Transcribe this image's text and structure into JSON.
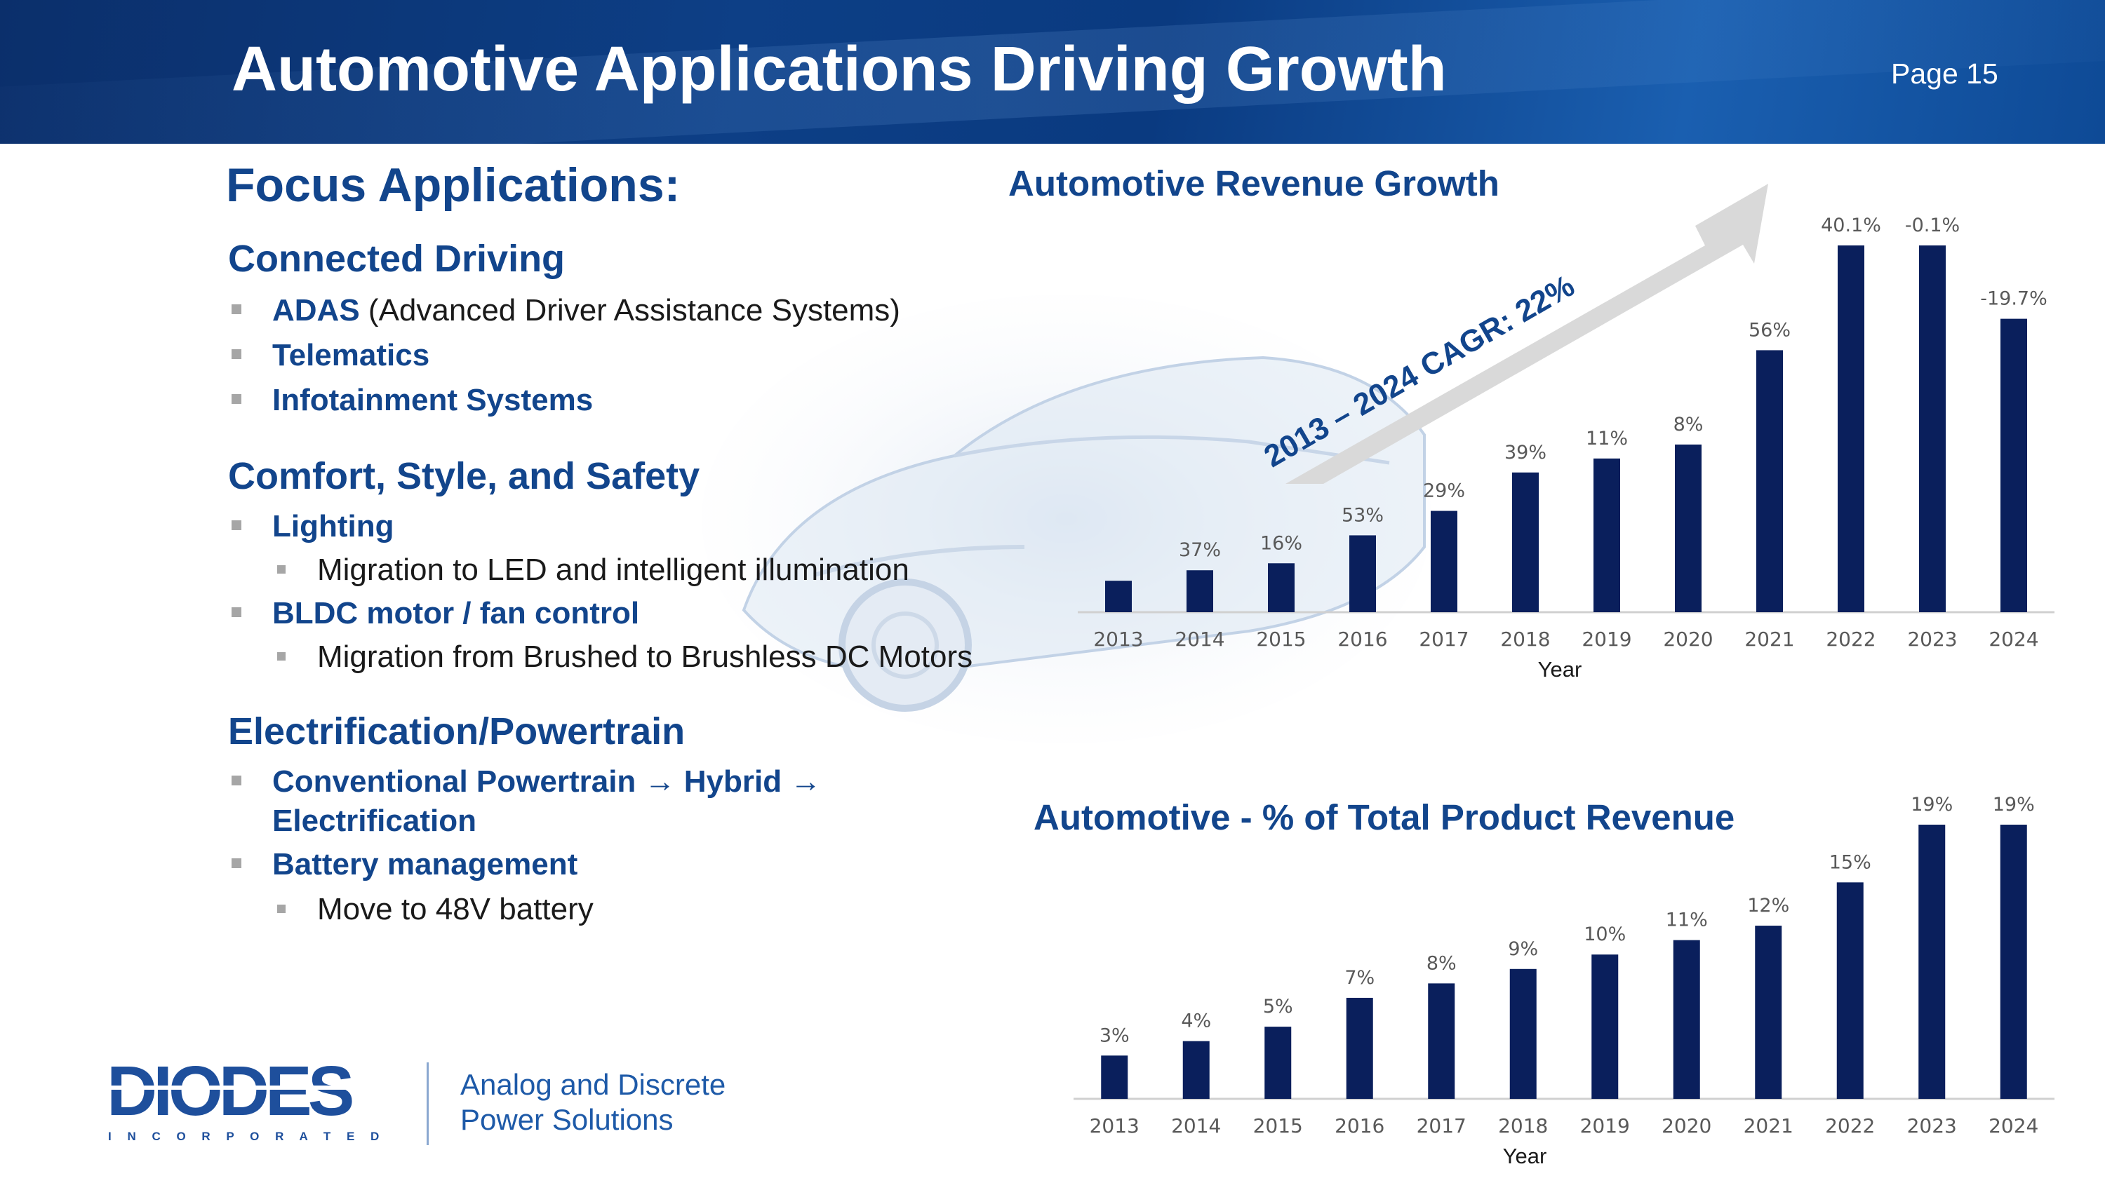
{
  "header": {
    "title": "Automotive Applications Driving Growth",
    "page": "Page 15"
  },
  "left": {
    "focus_title": "Focus Applications:",
    "sections": [
      {
        "heading": "Connected Driving",
        "bullets": [
          {
            "bold": "ADAS",
            "rest": " (Advanced Driver Assistance Systems)"
          },
          {
            "bold": "Telematics",
            "rest": ""
          },
          {
            "bold": "Infotainment Systems",
            "rest": ""
          }
        ]
      },
      {
        "heading": "Comfort, Style, and Safety",
        "bullets": [
          {
            "bold": "Lighting",
            "rest": "",
            "sub": "Migration to LED and intelligent illumination"
          },
          {
            "bold": "BLDC motor / fan control",
            "rest": "",
            "sub": "Migration from Brushed to Brushless DC Motors"
          }
        ]
      },
      {
        "heading": "Electrification/Powertrain",
        "bullets": [
          {
            "bold": "Conventional Powertrain → Hybrid →",
            "bold2": "Electrification"
          },
          {
            "bold": "Battery management",
            "rest": "",
            "sub": "Move to 48V battery"
          }
        ]
      }
    ]
  },
  "logo": {
    "name": "DIODES",
    "sub": "I N C O R P O R A T E D",
    "tagline_1": "Analog and Discrete",
    "tagline_2": "Power Solutions"
  },
  "colors": {
    "bar": "#0a1f5c",
    "title_blue": "#12458c",
    "arrow": "#d9d9d9"
  },
  "chart_data": [
    {
      "type": "bar",
      "title": "Automotive Revenue Growth",
      "xlabel": "Year",
      "ylabel": "",
      "categories": [
        "2013",
        "2014",
        "2015",
        "2016",
        "2017",
        "2018",
        "2019",
        "2020",
        "2021",
        "2022",
        "2023",
        "2024"
      ],
      "values": [
        9,
        12,
        14,
        22,
        29,
        40,
        44,
        48,
        75,
        105,
        105,
        84
      ],
      "data_labels": [
        "",
        "37%",
        "16%",
        "53%",
        "29%",
        "39%",
        "11%",
        "8%",
        "56%",
        "40.1%",
        "-0.1%",
        "-19.7%"
      ],
      "annotation": "2013 – 2024 CAGR: 22%",
      "grid": false,
      "legend": "none"
    },
    {
      "type": "bar",
      "title": "Automotive - % of Total Product Revenue",
      "xlabel": "Year",
      "ylabel": "",
      "categories": [
        "2013",
        "2014",
        "2015",
        "2016",
        "2017",
        "2018",
        "2019",
        "2020",
        "2021",
        "2022",
        "2023",
        "2024"
      ],
      "values": [
        3,
        4,
        5,
        7,
        8,
        9,
        10,
        11,
        12,
        15,
        19,
        19
      ],
      "data_labels": [
        "3%",
        "4%",
        "5%",
        "7%",
        "8%",
        "9%",
        "10%",
        "11%",
        "12%",
        "15%",
        "19%",
        "19%"
      ],
      "grid": false,
      "legend": "none"
    }
  ]
}
